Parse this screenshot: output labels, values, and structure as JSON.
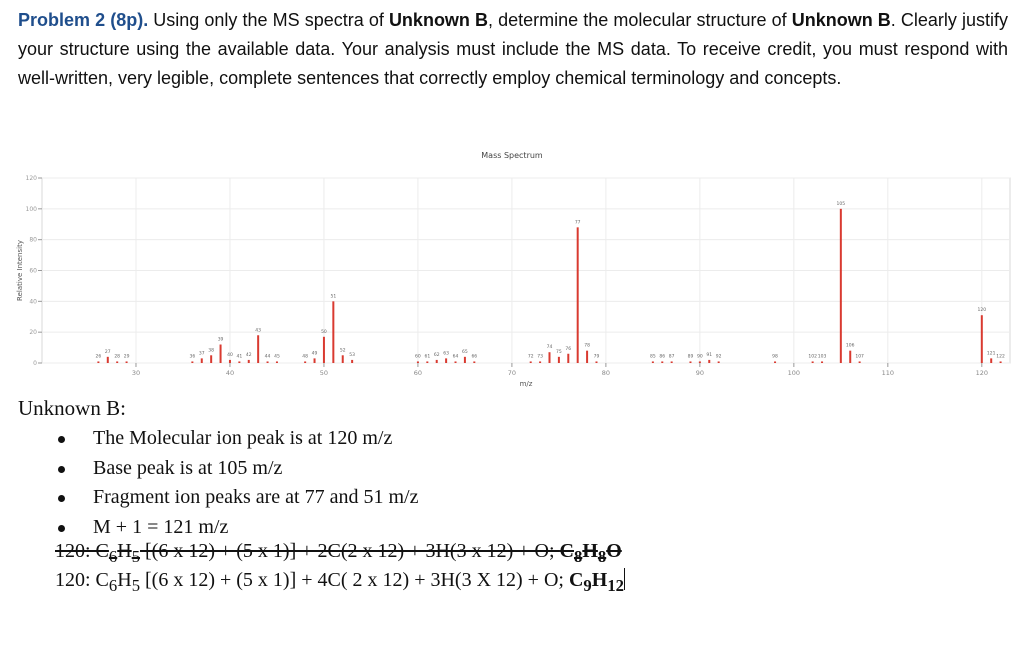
{
  "problem": {
    "title": "Problem 2 (8p).",
    "text_1": " Using only the MS spectra of ",
    "bold_1": "Unknown B",
    "text_2": ", determine the molecular structure of ",
    "bold_2": "Unknown B",
    "text_3": ". Clearly justify your structure using the available data. Your analysis must include the MS data. To receive credit, you must respond with well-written, very legible, complete sentences that correctly employ chemical terminology and concepts."
  },
  "chart_data": {
    "type": "bar",
    "title": "Mass Spectrum",
    "xlabel": "m/z",
    "ylabel": "Relative Intensity",
    "xlim": [
      20,
      123
    ],
    "ylim": [
      0,
      120
    ],
    "y_ticks": [
      "0",
      "20",
      "40",
      "60",
      "80",
      "100",
      "120"
    ],
    "x_ticks": [
      "30",
      "40",
      "50",
      "60",
      "70",
      "80",
      "90",
      "100",
      "110",
      "120"
    ],
    "grid": true,
    "peaks": [
      {
        "mz": 26,
        "intensity": 1,
        "label": "26"
      },
      {
        "mz": 27,
        "intensity": 4,
        "label": "27"
      },
      {
        "mz": 28,
        "intensity": 1,
        "label": "28"
      },
      {
        "mz": 29,
        "intensity": 1,
        "label": "29"
      },
      {
        "mz": 36,
        "intensity": 1,
        "label": "36"
      },
      {
        "mz": 37,
        "intensity": 3,
        "label": "37"
      },
      {
        "mz": 38,
        "intensity": 5,
        "label": "38"
      },
      {
        "mz": 39,
        "intensity": 12,
        "label": "39"
      },
      {
        "mz": 40,
        "intensity": 2,
        "label": "40"
      },
      {
        "mz": 41,
        "intensity": 1,
        "label": "41"
      },
      {
        "mz": 42,
        "intensity": 2,
        "label": "42"
      },
      {
        "mz": 43,
        "intensity": 18,
        "label": "43"
      },
      {
        "mz": 44,
        "intensity": 1,
        "label": "44"
      },
      {
        "mz": 45,
        "intensity": 1,
        "label": "45"
      },
      {
        "mz": 48,
        "intensity": 1,
        "label": "48"
      },
      {
        "mz": 49,
        "intensity": 3,
        "label": "49"
      },
      {
        "mz": 50,
        "intensity": 17,
        "label": "50"
      },
      {
        "mz": 51,
        "intensity": 40,
        "label": "51"
      },
      {
        "mz": 52,
        "intensity": 5,
        "label": "52"
      },
      {
        "mz": 53,
        "intensity": 2,
        "label": "53"
      },
      {
        "mz": 60,
        "intensity": 1,
        "label": "60"
      },
      {
        "mz": 61,
        "intensity": 1,
        "label": "61"
      },
      {
        "mz": 62,
        "intensity": 2,
        "label": "62"
      },
      {
        "mz": 63,
        "intensity": 3,
        "label": "63"
      },
      {
        "mz": 64,
        "intensity": 1,
        "label": "64"
      },
      {
        "mz": 65,
        "intensity": 4,
        "label": "65"
      },
      {
        "mz": 66,
        "intensity": 1,
        "label": "66"
      },
      {
        "mz": 72,
        "intensity": 1,
        "label": "72"
      },
      {
        "mz": 73,
        "intensity": 1,
        "label": "73"
      },
      {
        "mz": 74,
        "intensity": 7,
        "label": "74"
      },
      {
        "mz": 75,
        "intensity": 4,
        "label": "75"
      },
      {
        "mz": 76,
        "intensity": 6,
        "label": "76"
      },
      {
        "mz": 77,
        "intensity": 88,
        "label": "77"
      },
      {
        "mz": 78,
        "intensity": 8,
        "label": "78"
      },
      {
        "mz": 79,
        "intensity": 1,
        "label": "79"
      },
      {
        "mz": 85,
        "intensity": 1,
        "label": "85"
      },
      {
        "mz": 86,
        "intensity": 1,
        "label": "86"
      },
      {
        "mz": 87,
        "intensity": 1,
        "label": "87"
      },
      {
        "mz": 89,
        "intensity": 1,
        "label": "89"
      },
      {
        "mz": 90,
        "intensity": 1,
        "label": "90"
      },
      {
        "mz": 91,
        "intensity": 2,
        "label": "91"
      },
      {
        "mz": 92,
        "intensity": 1,
        "label": "92"
      },
      {
        "mz": 98,
        "intensity": 1,
        "label": "98"
      },
      {
        "mz": 102,
        "intensity": 1,
        "label": "102"
      },
      {
        "mz": 103,
        "intensity": 1,
        "label": "103"
      },
      {
        "mz": 105,
        "intensity": 100,
        "label": "105"
      },
      {
        "mz": 106,
        "intensity": 8,
        "label": "106"
      },
      {
        "mz": 107,
        "intensity": 1,
        "label": "107"
      },
      {
        "mz": 120,
        "intensity": 31,
        "label": "120"
      },
      {
        "mz": 121,
        "intensity": 3,
        "label": "121"
      },
      {
        "mz": 122,
        "intensity": 1,
        "label": "122"
      }
    ]
  },
  "unknown": {
    "heading": "Unknown B:",
    "bullets": [
      "The Molecular ion peak is at 120 m/z",
      "Base peak is at 105 m/z",
      "Fragment ion peaks are at 77 and 51 m/z",
      "M + 1 = 121 m/z"
    ]
  },
  "formulas": {
    "struck": {
      "prefix": "120: C",
      "s1": "6",
      "h": "H",
      "s2": "5",
      "middle": " [(6 x 12) + (5 x 1)] + 2C(2 x 12) + 3H(3 x 12) + O; ",
      "f1": "C",
      "f1s": "8",
      "f2": "H",
      "f2s": "8",
      "f3": "O"
    },
    "final": {
      "prefix": "120: C",
      "s1": "6",
      "h": "H",
      "s2": "5",
      "middle": " [(6 x 12) + (5 x 1)] + 4C( 2 x 12) + 3H(3 X 12) + O; ",
      "f1": "C",
      "f1s": "9",
      "f2": "H",
      "f2s": "12"
    }
  }
}
